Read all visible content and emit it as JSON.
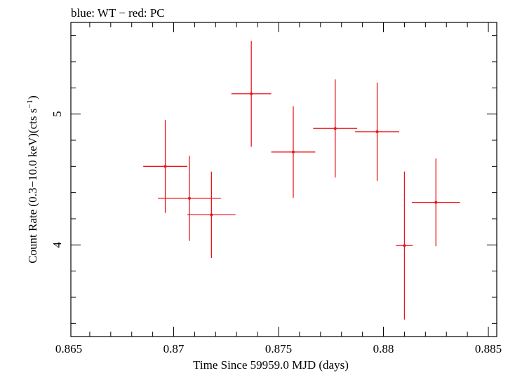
{
  "chart_data": {
    "type": "scatter",
    "title": "blue: WT − red: PC",
    "xlabel": "Time Since 59959.0 MJD (days)",
    "ylabel_main": "Count Rate (0.3−10.0 keV)(cts s",
    "ylabel_sup": "−1",
    "ylabel_close": ")",
    "xlim": [
      0.8651,
      0.8854
    ],
    "ylim": [
      3.3,
      5.7
    ],
    "x_ticks": [
      0.865,
      0.87,
      0.875,
      0.88,
      0.885
    ],
    "x_tick_labels": [
      "0.865",
      "0.87",
      "0.875",
      "0.88",
      "0.885"
    ],
    "y_ticks": [
      4,
      5
    ],
    "y_tick_labels": [
      "4",
      "5"
    ],
    "grid": false,
    "series": [
      {
        "color": "#e8161c",
        "points": [
          {
            "x": 0.87075,
            "xerr": 0.0015,
            "y": 4.356,
            "yerr": 0.325
          },
          {
            "x": 0.8696,
            "xerr": 0.00105,
            "y": 4.6,
            "yerr": 0.355
          },
          {
            "x": 0.8718,
            "xerr": 0.00115,
            "y": 4.23,
            "yerr": 0.33
          },
          {
            "x": 0.8737,
            "xerr": 0.00095,
            "y": 5.155,
            "yerr": 0.405
          },
          {
            "x": 0.8757,
            "xerr": 0.00105,
            "y": 4.71,
            "yerr": 0.35
          },
          {
            "x": 0.8777,
            "xerr": 0.00105,
            "y": 4.89,
            "yerr": 0.375
          },
          {
            "x": 0.8797,
            "xerr": 0.00105,
            "y": 4.865,
            "yerr": 0.375
          },
          {
            "x": 0.881,
            "xerr": 0.0004,
            "y": 3.995,
            "yerr": 0.565
          },
          {
            "x": 0.8825,
            "xerr": 0.00115,
            "y": 4.325,
            "yerr": 0.335
          }
        ]
      }
    ]
  }
}
